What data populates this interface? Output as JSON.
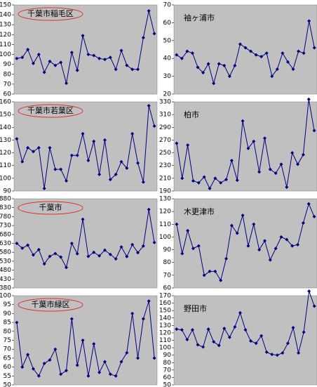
{
  "chart_data": [
    {
      "type": "line",
      "title": "千葉市稲毛区",
      "color": "#000080",
      "ylim": [
        60,
        150
      ],
      "yticks": [
        60,
        70,
        80,
        90,
        100,
        110,
        120,
        130,
        140,
        150
      ],
      "values": [
        96,
        97,
        105,
        91,
        100,
        82,
        93,
        89,
        92,
        71,
        102,
        84,
        119,
        100,
        99,
        96,
        95,
        97,
        85,
        104,
        89,
        85,
        85,
        117,
        144,
        121
      ]
    },
    {
      "type": "line",
      "title": "袖ヶ浦市",
      "color": "#000080",
      "ylim": [
        20,
        70
      ],
      "yticks": [
        20,
        30,
        40,
        50,
        60,
        70
      ],
      "values": [
        42,
        40,
        44,
        43,
        35,
        32,
        37,
        26,
        37,
        36,
        30,
        36,
        48,
        46,
        44,
        42,
        41,
        43,
        30,
        34,
        43,
        38,
        34,
        44,
        43,
        61,
        46
      ]
    },
    {
      "type": "line",
      "title": "千葉市若葉区",
      "color": "#000080",
      "ylim": [
        90,
        160
      ],
      "yticks": [
        90,
        100,
        110,
        120,
        130,
        140,
        150,
        160
      ],
      "values": [
        131,
        113,
        124,
        121,
        124,
        92,
        124,
        107,
        107,
        98,
        118,
        118,
        135,
        114,
        129,
        103,
        130,
        99,
        103,
        113,
        108,
        135,
        112,
        97,
        157,
        141
      ]
    },
    {
      "type": "line",
      "title": "柏市",
      "color": "#000080",
      "ylim": [
        190,
        330
      ],
      "yticks": [
        190,
        210,
        230,
        250,
        270,
        290,
        310,
        330
      ],
      "values": [
        265,
        210,
        262,
        206,
        203,
        212,
        194,
        210,
        203,
        208,
        238,
        207,
        300,
        257,
        268,
        220,
        273,
        224,
        218,
        232,
        196,
        250,
        232,
        247,
        334,
        285
      ]
    },
    {
      "type": "line",
      "title": "千葉市",
      "color": "#000080",
      "ylim": [
        380,
        880
      ],
      "yticks": [
        380,
        430,
        480,
        530,
        580,
        630,
        680,
        730,
        780,
        830,
        880
      ],
      "values": [
        630,
        603,
        620,
        565,
        595,
        515,
        557,
        573,
        553,
        495,
        630,
        572,
        765,
        557,
        580,
        560,
        592,
        568,
        543,
        610,
        556,
        623,
        578,
        615,
        820,
        635
      ]
    },
    {
      "type": "line",
      "title": "木更津市",
      "color": "#000080",
      "ylim": [
        60,
        130
      ],
      "yticks": [
        60,
        70,
        80,
        90,
        100,
        110,
        120,
        130
      ],
      "values": [
        110,
        87,
        105,
        91,
        93,
        70,
        73,
        73,
        66,
        83,
        109,
        103,
        117,
        93,
        110,
        90,
        97,
        82,
        91,
        100,
        98,
        93,
        94,
        111,
        126,
        116
      ]
    },
    {
      "type": "line",
      "title": "千葉市緑区",
      "color": "#000080",
      "ylim": [
        50,
        100
      ],
      "yticks": [
        50,
        55,
        60,
        65,
        70,
        75,
        80,
        85,
        90,
        95,
        100
      ],
      "values": [
        85,
        60,
        67,
        59,
        55,
        62,
        64,
        70,
        56,
        58,
        87,
        61,
        75,
        55,
        73,
        57,
        63,
        56,
        55,
        63,
        68,
        90,
        65,
        87,
        97,
        65
      ]
    },
    {
      "type": "line",
      "title": "野田市",
      "color": "#000080",
      "ylim": [
        50,
        170
      ],
      "yticks": [
        50,
        60,
        70,
        80,
        90,
        100,
        110,
        120,
        130,
        140,
        150,
        160,
        170
      ],
      "values": [
        125,
        124,
        111,
        124,
        104,
        101,
        125,
        108,
        103,
        126,
        114,
        128,
        147,
        124,
        109,
        106,
        116,
        94,
        91,
        90,
        93,
        106,
        127,
        93,
        121,
        176,
        156
      ]
    }
  ]
}
